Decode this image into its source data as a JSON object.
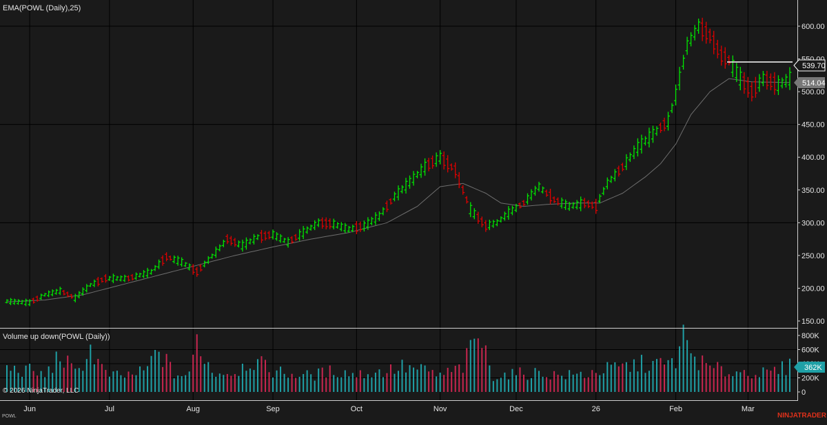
{
  "indicator_label": "EMA(POWL (Daily),25)",
  "volume_label": "Volume up down(POWL (Daily))",
  "copyright": "© 2026 NinjaTrader, LLC",
  "symbol": "POWL",
  "brand": "NINJATRADER",
  "colors": {
    "background": "#1a1a1a",
    "up": "#00e600",
    "down": "#e00000",
    "ema": "#6e6e6e",
    "volume_up": "#1fa0a6",
    "volume_down": "#c8264f",
    "grid": "#000000",
    "last_price_line": "#ffffff",
    "brand": "#e0311a"
  },
  "price_axis": {
    "ticks": [
      "600.00",
      "550.00",
      "500.00",
      "450.00",
      "400.00",
      "350.00",
      "300.00",
      "250.00",
      "200.00",
      "150.00"
    ],
    "tick_values": [
      600,
      550,
      500,
      450,
      400,
      350,
      300,
      250,
      200,
      150
    ],
    "last_price_label": "539.70",
    "ema_value_label": "514.04"
  },
  "volume_axis": {
    "ticks": [
      "800K",
      "600K",
      "400K",
      "200K",
      "0"
    ],
    "tick_values": [
      800000,
      600000,
      400000,
      200000,
      0
    ],
    "last_volume_label": "362K"
  },
  "x_axis": {
    "labels": [
      "Jun",
      "Jul",
      "Aug",
      "Sep",
      "Oct",
      "Nov",
      "Dec",
      "26",
      "Feb",
      "Mar"
    ],
    "label_bar_index": [
      6,
      27,
      49,
      70,
      92,
      114,
      134,
      155,
      176,
      195
    ]
  },
  "chart_data": {
    "type": "ohlc",
    "title": "",
    "series": [
      {
        "name": "POWL (Daily)",
        "kind": "price",
        "anchors": [
          [
            0,
            180
          ],
          [
            6,
            178
          ],
          [
            10,
            190
          ],
          [
            14,
            196
          ],
          [
            18,
            185
          ],
          [
            22,
            205
          ],
          [
            26,
            215
          ],
          [
            32,
            215
          ],
          [
            38,
            225
          ],
          [
            42,
            248
          ],
          [
            46,
            240
          ],
          [
            50,
            225
          ],
          [
            55,
            255
          ],
          [
            58,
            275
          ],
          [
            62,
            265
          ],
          [
            66,
            278
          ],
          [
            70,
            282
          ],
          [
            74,
            270
          ],
          [
            78,
            285
          ],
          [
            82,
            300
          ],
          [
            86,
            298
          ],
          [
            90,
            290
          ],
          [
            94,
            295
          ],
          [
            98,
            310
          ],
          [
            102,
            340
          ],
          [
            106,
            362
          ],
          [
            110,
            385
          ],
          [
            114,
            400
          ],
          [
            118,
            380
          ],
          [
            122,
            320
          ],
          [
            126,
            295
          ],
          [
            129,
            300
          ],
          [
            132,
            315
          ],
          [
            136,
            330
          ],
          [
            140,
            355
          ],
          [
            144,
            335
          ],
          [
            148,
            325
          ],
          [
            152,
            330
          ],
          [
            155,
            325
          ],
          [
            158,
            360
          ],
          [
            162,
            385
          ],
          [
            166,
            415
          ],
          [
            170,
            435
          ],
          [
            174,
            455
          ],
          [
            176,
            495
          ],
          [
            179,
            570
          ],
          [
            182,
            600
          ],
          [
            185,
            585
          ],
          [
            188,
            555
          ],
          [
            190,
            548
          ],
          [
            193,
            520
          ],
          [
            196,
            500
          ],
          [
            199,
            520
          ],
          [
            203,
            510
          ],
          [
            206,
            520
          ]
        ]
      },
      {
        "name": "EMA(POWL (Daily),25)",
        "kind": "ema",
        "anchors": [
          [
            0,
            179
          ],
          [
            10,
            182
          ],
          [
            20,
            190
          ],
          [
            30,
            205
          ],
          [
            40,
            220
          ],
          [
            50,
            235
          ],
          [
            60,
            250
          ],
          [
            70,
            263
          ],
          [
            80,
            275
          ],
          [
            90,
            285
          ],
          [
            100,
            300
          ],
          [
            108,
            325
          ],
          [
            114,
            355
          ],
          [
            120,
            360
          ],
          [
            126,
            345
          ],
          [
            130,
            330
          ],
          [
            136,
            325
          ],
          [
            142,
            328
          ],
          [
            150,
            330
          ],
          [
            156,
            330
          ],
          [
            162,
            345
          ],
          [
            168,
            370
          ],
          [
            172,
            390
          ],
          [
            176,
            420
          ],
          [
            180,
            465
          ],
          [
            185,
            500
          ],
          [
            190,
            520
          ],
          [
            196,
            515
          ],
          [
            206,
            514
          ]
        ]
      },
      {
        "name": "Volume up down(POWL (Daily))",
        "kind": "volume",
        "anchors": [
          [
            0,
            330
          ],
          [
            6,
            300
          ],
          [
            10,
            230
          ],
          [
            14,
            520
          ],
          [
            18,
            260
          ],
          [
            22,
            600
          ],
          [
            26,
            250
          ],
          [
            30,
            220
          ],
          [
            36,
            280
          ],
          [
            40,
            580
          ],
          [
            44,
            250
          ],
          [
            48,
            230
          ],
          [
            50,
            750
          ],
          [
            54,
            280
          ],
          [
            60,
            280
          ],
          [
            64,
            450
          ],
          [
            70,
            300
          ],
          [
            74,
            260
          ],
          [
            80,
            230
          ],
          [
            86,
            300
          ],
          [
            92,
            250
          ],
          [
            98,
            280
          ],
          [
            104,
            350
          ],
          [
            110,
            300
          ],
          [
            114,
            230
          ],
          [
            120,
            350
          ],
          [
            124,
            820
          ],
          [
            128,
            230
          ],
          [
            132,
            250
          ],
          [
            140,
            270
          ],
          [
            146,
            230
          ],
          [
            152,
            250
          ],
          [
            156,
            300
          ],
          [
            162,
            350
          ],
          [
            168,
            400
          ],
          [
            174,
            380
          ],
          [
            176,
            460
          ],
          [
            178,
            750
          ],
          [
            180,
            550
          ],
          [
            184,
            350
          ],
          [
            190,
            280
          ],
          [
            196,
            290
          ],
          [
            200,
            250
          ],
          [
            206,
            362
          ]
        ]
      },
      {
        "name": "POWL (Daily) direction",
        "kind": "direction_runs",
        "runs": [
          [
            0,
            6,
            "up"
          ],
          [
            7,
            8,
            "down"
          ],
          [
            9,
            14,
            "up"
          ],
          [
            15,
            17,
            "down"
          ],
          [
            18,
            23,
            "up"
          ],
          [
            24,
            26,
            "down"
          ],
          [
            27,
            31,
            "up"
          ],
          [
            32,
            33,
            "down"
          ],
          [
            34,
            40,
            "up"
          ],
          [
            41,
            43,
            "down"
          ],
          [
            44,
            48,
            "up"
          ],
          [
            49,
            51,
            "down"
          ],
          [
            52,
            57,
            "up"
          ],
          [
            58,
            60,
            "down"
          ],
          [
            61,
            66,
            "up"
          ],
          [
            67,
            69,
            "down"
          ],
          [
            70,
            74,
            "up"
          ],
          [
            75,
            76,
            "down"
          ],
          [
            77,
            82,
            "up"
          ],
          [
            83,
            85,
            "down"
          ],
          [
            86,
            91,
            "up"
          ],
          [
            92,
            93,
            "down"
          ],
          [
            94,
            99,
            "up"
          ],
          [
            100,
            101,
            "down"
          ],
          [
            102,
            110,
            "up"
          ],
          [
            111,
            112,
            "down"
          ],
          [
            113,
            114,
            "up"
          ],
          [
            115,
            121,
            "down"
          ],
          [
            122,
            123,
            "up"
          ],
          [
            124,
            126,
            "down"
          ],
          [
            127,
            134,
            "up"
          ],
          [
            135,
            136,
            "down"
          ],
          [
            137,
            141,
            "up"
          ],
          [
            142,
            145,
            "down"
          ],
          [
            146,
            151,
            "up"
          ],
          [
            152,
            155,
            "down"
          ],
          [
            156,
            160,
            "up"
          ],
          [
            161,
            162,
            "down"
          ],
          [
            163,
            171,
            "up"
          ],
          [
            172,
            173,
            "down"
          ],
          [
            174,
            182,
            "up"
          ],
          [
            183,
            190,
            "down"
          ],
          [
            191,
            193,
            "up"
          ],
          [
            194,
            197,
            "down"
          ],
          [
            198,
            199,
            "up"
          ],
          [
            200,
            202,
            "down"
          ],
          [
            203,
            206,
            "up"
          ]
        ]
      }
    ],
    "bar_count": 207,
    "ylim": [
      150,
      630
    ],
    "volume_ylim": [
      0,
      870000
    ],
    "last_price": 539.7,
    "ema_last": 514.04,
    "last_volume": 362000
  }
}
